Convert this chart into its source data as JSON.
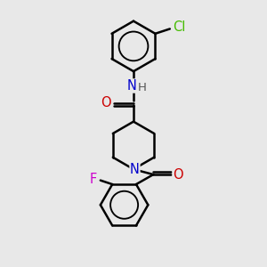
{
  "bg_color": "#e8e8e8",
  "bond_color": "#000000",
  "bond_width": 1.8,
  "atom_colors": {
    "N": "#0000cc",
    "O": "#cc0000",
    "Cl": "#44bb00",
    "F": "#cc00cc",
    "H": "#555555"
  },
  "font_size": 9.5,
  "fig_size": [
    3.0,
    3.0
  ],
  "dpi": 100
}
